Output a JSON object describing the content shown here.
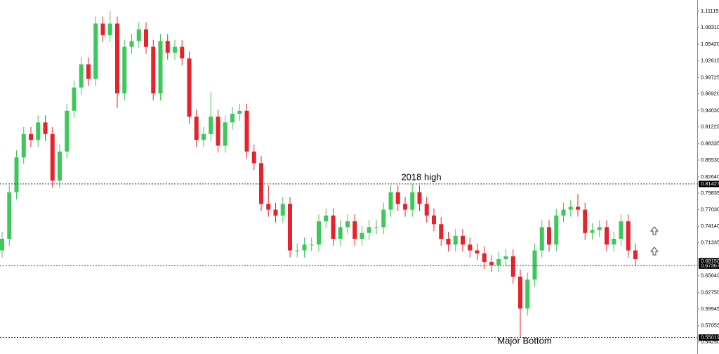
{
  "chart_data": {
    "type": "candlestick",
    "up_color": "#3ec75a",
    "down_color": "#e8212b",
    "ylim": [
      0.534,
      1.1305
    ],
    "yticks": [
      1.11115,
      {
        "value": 1.0831,
        "label": "1.08310"
      },
      {
        "value": 1.0542,
        "label": "1.05420"
      },
      1.02615,
      0.99725,
      {
        "value": 0.9692,
        "label": "0.96920"
      },
      {
        "value": 0.9403,
        "label": "0.94030"
      },
      0.91225,
      0.88335,
      {
        "value": 0.8553,
        "label": "0.85530"
      },
      {
        "value": 0.8264,
        "label": "0.82640"
      },
      0.79835,
      {
        "value": 0.7703,
        "label": "0.77030"
      },
      {
        "value": 0.7414,
        "label": "0.74140"
      },
      0.71335,
      {
        "value": 0.6564,
        "label": "0.65640"
      },
      {
        "value": 0.6275,
        "label": "0.62750"
      },
      0.59945,
      0.57055,
      {
        "value": 0.5425,
        "label": "0.54250"
      }
    ],
    "markers": [
      {
        "value": 0.81427,
        "label": "0.81427",
        "line": true
      },
      {
        "value": 0.6815,
        "label": "0.68150",
        "line": false
      },
      {
        "value": 0.67367,
        "label": "0.67367",
        "line": true
      },
      {
        "value": 0.55019,
        "label": "0.55019",
        "line": true
      }
    ],
    "annotations": [
      "2018 high",
      "Major Bottom"
    ],
    "open": [
      0.7,
      0.72,
      0.8,
      0.86,
      0.9,
      0.89,
      0.92,
      0.9,
      0.82,
      0.87,
      0.94,
      0.98,
      1.02,
      0.995,
      1.09,
      1.07,
      1.09,
      0.97,
      1.05,
      1.06,
      1.08,
      1.05,
      0.97,
      1.06,
      1.04,
      1.05,
      1.03,
      0.93,
      0.89,
      0.9,
      0.93,
      0.88,
      0.92,
      0.935,
      0.94,
      0.87,
      0.85,
      0.78,
      0.77,
      0.76,
      0.78,
      0.7,
      0.7,
      0.71,
      0.71,
      0.75,
      0.76,
      0.72,
      0.74,
      0.75,
      0.72,
      0.73,
      0.74,
      0.74,
      0.77,
      0.8,
      0.78,
      0.77,
      0.8,
      0.78,
      0.76,
      0.745,
      0.72,
      0.71,
      0.725,
      0.71,
      0.7,
      0.695,
      0.68,
      0.675,
      0.685,
      0.69,
      0.655,
      0.6,
      0.65,
      0.7,
      0.74,
      0.71,
      0.76,
      0.77,
      0.775,
      0.77,
      0.73,
      0.735,
      0.74,
      0.71,
      0.72,
      0.75,
      0.7
    ],
    "high": [
      0.732,
      0.812,
      0.872,
      0.912,
      0.912,
      0.932,
      0.932,
      0.912,
      0.882,
      0.952,
      0.992,
      1.032,
      1.032,
      1.102,
      1.102,
      1.111,
      1.102,
      1.062,
      1.072,
      1.092,
      1.092,
      1.062,
      1.072,
      1.072,
      1.062,
      1.062,
      1.042,
      0.942,
      0.912,
      0.972,
      0.942,
      0.932,
      0.947,
      0.952,
      0.952,
      0.882,
      0.862,
      0.812,
      0.782,
      0.792,
      0.792,
      0.712,
      0.722,
      0.722,
      0.762,
      0.772,
      0.772,
      0.752,
      0.762,
      0.762,
      0.742,
      0.752,
      0.752,
      0.782,
      0.812,
      0.812,
      0.792,
      0.8143,
      0.812,
      0.792,
      0.772,
      0.757,
      0.732,
      0.737,
      0.737,
      0.722,
      0.712,
      0.707,
      0.692,
      0.697,
      0.702,
      0.702,
      0.667,
      0.662,
      0.712,
      0.752,
      0.752,
      0.772,
      0.782,
      0.787,
      0.797,
      0.782,
      0.747,
      0.752,
      0.752,
      0.732,
      0.762,
      0.762,
      0.712
    ],
    "low": [
      0.688,
      0.708,
      0.788,
      0.848,
      0.878,
      0.878,
      0.888,
      0.808,
      0.808,
      0.858,
      0.928,
      0.968,
      0.983,
      0.983,
      1.058,
      1.058,
      0.945,
      0.958,
      1.038,
      1.048,
      1.038,
      0.958,
      0.958,
      1.028,
      1.028,
      1.018,
      0.918,
      0.878,
      0.878,
      0.888,
      0.868,
      0.868,
      0.908,
      0.923,
      0.858,
      0.838,
      0.768,
      0.758,
      0.748,
      0.748,
      0.688,
      0.688,
      0.688,
      0.698,
      0.698,
      0.738,
      0.708,
      0.708,
      0.728,
      0.708,
      0.708,
      0.718,
      0.728,
      0.728,
      0.758,
      0.768,
      0.758,
      0.758,
      0.768,
      0.748,
      0.733,
      0.708,
      0.698,
      0.698,
      0.698,
      0.688,
      0.683,
      0.668,
      0.663,
      0.663,
      0.673,
      0.643,
      0.5502,
      0.588,
      0.638,
      0.688,
      0.698,
      0.698,
      0.748,
      0.758,
      0.758,
      0.718,
      0.718,
      0.723,
      0.698,
      0.698,
      0.708,
      0.688,
      0.673
    ],
    "close": [
      0.72,
      0.8,
      0.86,
      0.9,
      0.89,
      0.92,
      0.9,
      0.82,
      0.87,
      0.94,
      0.98,
      1.02,
      0.995,
      1.09,
      1.07,
      1.09,
      0.97,
      1.05,
      1.06,
      1.08,
      1.05,
      0.97,
      1.06,
      1.04,
      1.05,
      1.03,
      0.93,
      0.89,
      0.9,
      0.93,
      0.88,
      0.92,
      0.935,
      0.94,
      0.87,
      0.85,
      0.78,
      0.77,
      0.76,
      0.78,
      0.7,
      0.7,
      0.71,
      0.71,
      0.75,
      0.76,
      0.72,
      0.74,
      0.75,
      0.72,
      0.73,
      0.74,
      0.74,
      0.77,
      0.8,
      0.78,
      0.77,
      0.8,
      0.78,
      0.76,
      0.745,
      0.72,
      0.71,
      0.725,
      0.71,
      0.7,
      0.695,
      0.68,
      0.675,
      0.685,
      0.69,
      0.655,
      0.6,
      0.65,
      0.7,
      0.74,
      0.71,
      0.76,
      0.77,
      0.775,
      0.77,
      0.73,
      0.735,
      0.74,
      0.71,
      0.72,
      0.75,
      0.7,
      0.685
    ]
  }
}
